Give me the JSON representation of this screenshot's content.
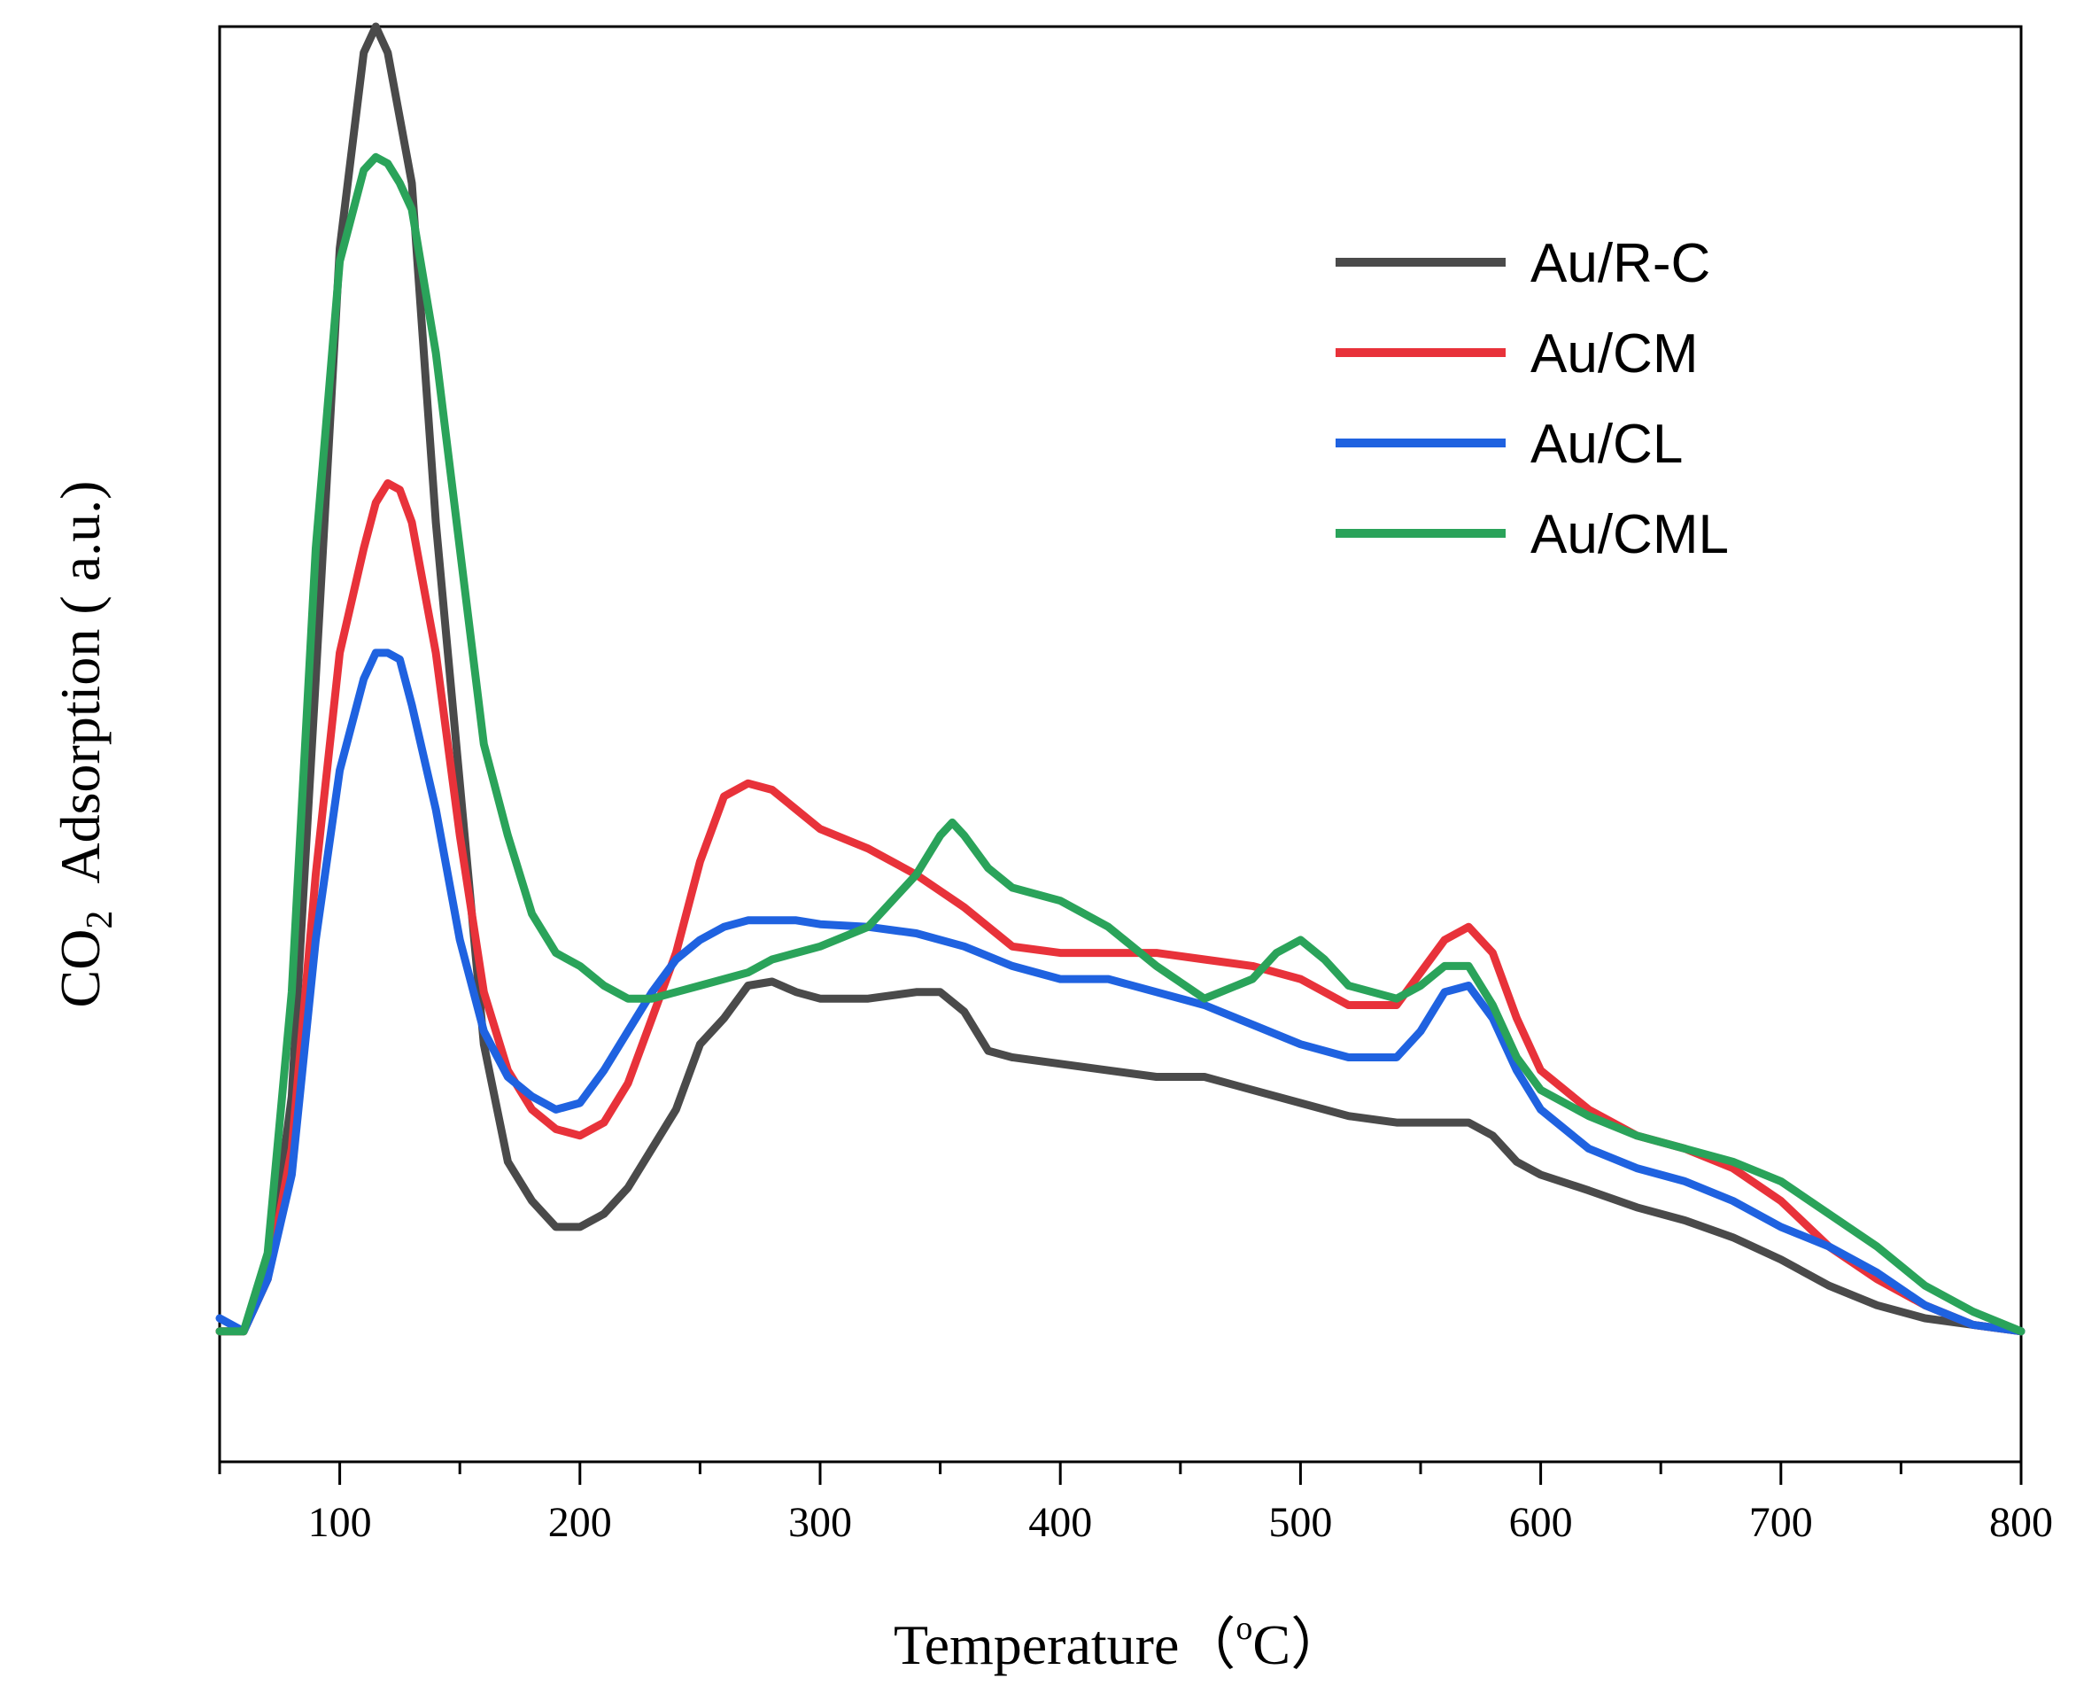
{
  "chart_data": {
    "type": "line",
    "title": "",
    "xlabel": "Temperature",
    "xlabel_unit_open": "（",
    "xlabel_unit_sup": "o",
    "xlabel_unit_main": "C",
    "xlabel_unit_close": "）",
    "ylabel_prefix": "CO",
    "ylabel_sub": "2",
    "ylabel_main": "Adsorption ( a.u.)",
    "xlim": [
      50,
      800
    ],
    "ylim": [
      -0.1,
      1.0
    ],
    "x_ticks": [
      100,
      200,
      300,
      400,
      500,
      600,
      700,
      800
    ],
    "x_minor_step": 50,
    "y_tick_labels_shown": false,
    "legend_position": "top-right",
    "series": [
      {
        "name": "Au/R-C",
        "color": "#4a4a4a",
        "x": [
          50,
          60,
          70,
          80,
          90,
          100,
          110,
          115,
          120,
          130,
          140,
          150,
          160,
          170,
          180,
          190,
          200,
          210,
          220,
          230,
          240,
          250,
          260,
          270,
          280,
          290,
          300,
          320,
          340,
          350,
          360,
          370,
          380,
          400,
          420,
          440,
          460,
          480,
          500,
          520,
          540,
          560,
          570,
          580,
          590,
          600,
          620,
          640,
          660,
          680,
          700,
          720,
          740,
          760,
          780,
          800
        ],
        "y": [
          0.0,
          0.0,
          0.04,
          0.18,
          0.5,
          0.83,
          0.98,
          1.0,
          0.98,
          0.88,
          0.62,
          0.42,
          0.22,
          0.13,
          0.1,
          0.08,
          0.08,
          0.09,
          0.11,
          0.14,
          0.17,
          0.22,
          0.24,
          0.265,
          0.268,
          0.26,
          0.255,
          0.255,
          0.26,
          0.26,
          0.245,
          0.215,
          0.21,
          0.205,
          0.2,
          0.195,
          0.195,
          0.185,
          0.175,
          0.165,
          0.16,
          0.16,
          0.16,
          0.15,
          0.13,
          0.12,
          0.108,
          0.095,
          0.085,
          0.072,
          0.055,
          0.035,
          0.02,
          0.01,
          0.005,
          0.0
        ]
      },
      {
        "name": "Au/CM",
        "color": "#e8323a",
        "x": [
          50,
          60,
          70,
          80,
          90,
          100,
          110,
          115,
          120,
          125,
          130,
          140,
          150,
          160,
          170,
          180,
          190,
          200,
          210,
          220,
          230,
          240,
          250,
          260,
          270,
          280,
          290,
          300,
          320,
          340,
          360,
          380,
          400,
          420,
          440,
          460,
          480,
          500,
          520,
          540,
          560,
          570,
          580,
          590,
          600,
          620,
          640,
          660,
          680,
          700,
          720,
          740,
          760,
          780,
          800
        ],
        "y": [
          0.0,
          0.0,
          0.04,
          0.14,
          0.35,
          0.52,
          0.6,
          0.635,
          0.65,
          0.645,
          0.62,
          0.52,
          0.38,
          0.26,
          0.2,
          0.17,
          0.155,
          0.15,
          0.16,
          0.19,
          0.24,
          0.29,
          0.36,
          0.41,
          0.42,
          0.415,
          0.4,
          0.385,
          0.37,
          0.35,
          0.325,
          0.295,
          0.29,
          0.29,
          0.29,
          0.285,
          0.28,
          0.27,
          0.25,
          0.25,
          0.3,
          0.31,
          0.29,
          0.24,
          0.2,
          0.17,
          0.15,
          0.14,
          0.125,
          0.1,
          0.065,
          0.04,
          0.02,
          0.005,
          0.0
        ]
      },
      {
        "name": "Au/CL",
        "color": "#1f62e0",
        "x": [
          50,
          60,
          70,
          80,
          90,
          100,
          110,
          115,
          120,
          125,
          130,
          140,
          150,
          160,
          170,
          180,
          190,
          200,
          210,
          220,
          230,
          240,
          250,
          260,
          270,
          280,
          290,
          300,
          320,
          340,
          360,
          380,
          400,
          420,
          440,
          460,
          480,
          500,
          520,
          540,
          550,
          560,
          570,
          580,
          590,
          600,
          620,
          640,
          660,
          680,
          700,
          720,
          740,
          760,
          780,
          800
        ],
        "y": [
          0.01,
          0.0,
          0.04,
          0.12,
          0.3,
          0.43,
          0.5,
          0.52,
          0.52,
          0.515,
          0.48,
          0.4,
          0.3,
          0.23,
          0.195,
          0.18,
          0.17,
          0.175,
          0.2,
          0.23,
          0.26,
          0.285,
          0.3,
          0.31,
          0.315,
          0.315,
          0.315,
          0.312,
          0.31,
          0.305,
          0.295,
          0.28,
          0.27,
          0.27,
          0.26,
          0.25,
          0.235,
          0.22,
          0.21,
          0.21,
          0.23,
          0.26,
          0.265,
          0.24,
          0.2,
          0.17,
          0.14,
          0.125,
          0.115,
          0.1,
          0.08,
          0.065,
          0.045,
          0.02,
          0.005,
          0.0
        ]
      },
      {
        "name": "Au/CML",
        "color": "#2aa35a",
        "x": [
          50,
          60,
          70,
          80,
          90,
          100,
          110,
          115,
          120,
          125,
          130,
          140,
          150,
          160,
          170,
          180,
          190,
          200,
          210,
          220,
          230,
          240,
          250,
          260,
          270,
          280,
          290,
          300,
          320,
          340,
          350,
          355,
          360,
          370,
          380,
          400,
          420,
          440,
          460,
          480,
          490,
          500,
          510,
          520,
          540,
          550,
          560,
          570,
          580,
          590,
          600,
          620,
          640,
          660,
          680,
          700,
          720,
          740,
          760,
          780,
          800
        ],
        "y": [
          0.0,
          0.0,
          0.06,
          0.26,
          0.6,
          0.82,
          0.89,
          0.9,
          0.895,
          0.88,
          0.86,
          0.75,
          0.6,
          0.45,
          0.38,
          0.32,
          0.29,
          0.28,
          0.265,
          0.255,
          0.255,
          0.26,
          0.265,
          0.27,
          0.275,
          0.285,
          0.29,
          0.295,
          0.31,
          0.35,
          0.38,
          0.39,
          0.38,
          0.355,
          0.34,
          0.33,
          0.31,
          0.28,
          0.255,
          0.27,
          0.29,
          0.3,
          0.285,
          0.265,
          0.255,
          0.265,
          0.28,
          0.28,
          0.25,
          0.21,
          0.185,
          0.165,
          0.15,
          0.14,
          0.13,
          0.115,
          0.09,
          0.065,
          0.035,
          0.015,
          0.0
        ]
      }
    ]
  }
}
